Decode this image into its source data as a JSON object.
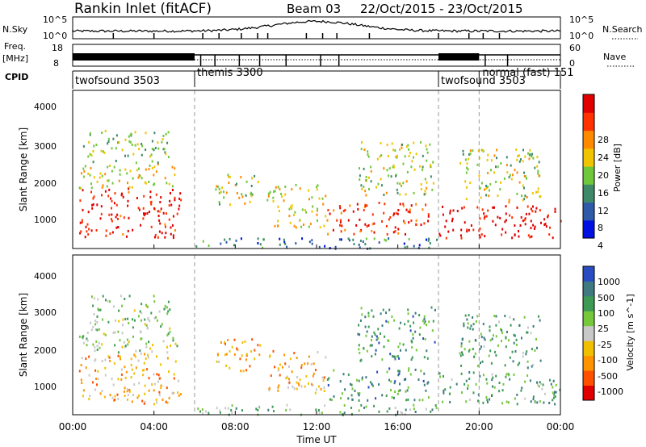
{
  "header": {
    "site": "Rankin Inlet (fitACF)",
    "beam": "Beam 03",
    "dates": "22/Oct/2015 - 23/Oct/2015"
  },
  "status": {
    "nsky_label": "N.Sky",
    "nsky_ticks": [
      "10^5",
      "10^0"
    ],
    "nsearch_label": "N.Search",
    "nsearch_ticks": [
      "10^5",
      "10^0"
    ],
    "freq_label": "Freq.",
    "freq_unit": "[MHz]",
    "freq_ticks": [
      "18",
      "8"
    ],
    "nave_label": "Nave",
    "nave_ticks": [
      "60",
      "0"
    ],
    "cpid_label": "CPID",
    "cpid_segments": [
      {
        "name": "twofsound 3503",
        "start_hour": 0
      },
      {
        "name": "themis 3300",
        "start_hour": 6
      },
      {
        "name": "twofsound 3503",
        "start_hour": 18
      },
      {
        "name": "normal (fast) 151",
        "start_hour": 20
      }
    ]
  },
  "time_axis": {
    "label": "Time UT",
    "ticks": [
      "00:00",
      "04:00",
      "08:00",
      "12:00",
      "16:00",
      "20:00",
      "00:00"
    ]
  },
  "power_colorbar": {
    "label": "Power [dB]",
    "ticks": [
      "28",
      "24",
      "20",
      "16",
      "12",
      "8",
      "4"
    ],
    "colors": [
      "#0010e0",
      "#2f5aa8",
      "#3e8a68",
      "#6fc83a",
      "#f0c400",
      "#ff8a00",
      "#ff3200",
      "#e00000"
    ]
  },
  "velocity_colorbar": {
    "label": "Velocity [m s^-1]",
    "ticks": [
      "1000",
      "500",
      "100",
      "25",
      "-25",
      "-100",
      "-500",
      "-1000"
    ],
    "colors": [
      "#2a4cc0",
      "#3f7a80",
      "#3c9a55",
      "#74c83a",
      "#c8c8c8",
      "#f0c000",
      "#ff9400",
      "#ff5000",
      "#e00000"
    ]
  },
  "chart_data": [
    {
      "type": "heatmap",
      "name": "power",
      "ylabel": "Slant Range [km]",
      "xlabel": "",
      "x_range_hours": [
        0,
        24
      ],
      "ylim": [
        180,
        4600
      ],
      "yticks": [
        "4000",
        "3000",
        "2000",
        "1000"
      ],
      "vertical_markers_hours": [
        6,
        18,
        20
      ],
      "scatter_regions": [
        {
          "t0": 0.3,
          "t1": 5.3,
          "r0": 500,
          "r1": 1900,
          "level": 0.9
        },
        {
          "t0": 0.3,
          "t1": 5.3,
          "r0": 1900,
          "r1": 2600,
          "level": 0.55
        },
        {
          "t0": 0.5,
          "t1": 4.8,
          "r0": 2600,
          "r1": 3500,
          "level": 0.45
        },
        {
          "t0": 7.0,
          "t1": 9.2,
          "r0": 1400,
          "r1": 2300,
          "level": 0.5
        },
        {
          "t0": 9.5,
          "t1": 12.5,
          "r0": 800,
          "r1": 2000,
          "level": 0.55
        },
        {
          "t0": 12.5,
          "t1": 17.5,
          "r0": 600,
          "r1": 1500,
          "level": 0.85
        },
        {
          "t0": 14.0,
          "t1": 17.8,
          "r0": 1700,
          "r1": 3200,
          "level": 0.5
        },
        {
          "t0": 18.0,
          "t1": 24.0,
          "r0": 500,
          "r1": 1400,
          "level": 0.95
        },
        {
          "t0": 19.0,
          "t1": 23.0,
          "r0": 1500,
          "r1": 3000,
          "level": 0.5
        },
        {
          "t0": 6.0,
          "t1": 18.0,
          "r0": 200,
          "r1": 500,
          "level": 0.25
        }
      ]
    },
    {
      "type": "heatmap",
      "name": "velocity",
      "ylabel": "Slant Range [km]",
      "xlabel": "Time UT",
      "x_range_hours": [
        0,
        24
      ],
      "ylim": [
        180,
        4600
      ],
      "yticks": [
        "4000",
        "3000",
        "2000",
        "1000"
      ],
      "vertical_markers_hours": [
        6,
        18,
        20
      ],
      "scatter_regions": [
        {
          "t0": 0.3,
          "t1": 5.3,
          "r0": 500,
          "r1": 1900,
          "level": 0.35
        },
        {
          "t0": 0.3,
          "t1": 5.3,
          "r0": 1900,
          "r1": 2600,
          "level": 0.55
        },
        {
          "t0": 0.5,
          "t1": 4.8,
          "r0": 2600,
          "r1": 3500,
          "level": 0.6
        },
        {
          "t0": 7.0,
          "t1": 9.2,
          "r0": 1400,
          "r1": 2300,
          "level": 0.3
        },
        {
          "t0": 9.5,
          "t1": 12.5,
          "r0": 800,
          "r1": 2000,
          "level": 0.35
        },
        {
          "t0": 12.5,
          "t1": 17.5,
          "r0": 600,
          "r1": 1500,
          "level": 0.75
        },
        {
          "t0": 14.0,
          "t1": 17.8,
          "r0": 1700,
          "r1": 3200,
          "level": 0.75
        },
        {
          "t0": 18.0,
          "t1": 24.0,
          "r0": 500,
          "r1": 1400,
          "level": 0.7
        },
        {
          "t0": 19.0,
          "t1": 23.0,
          "r0": 1500,
          "r1": 3000,
          "level": 0.7
        },
        {
          "t0": 6.0,
          "t1": 18.0,
          "r0": 200,
          "r1": 500,
          "level": 0.65
        }
      ]
    }
  ]
}
